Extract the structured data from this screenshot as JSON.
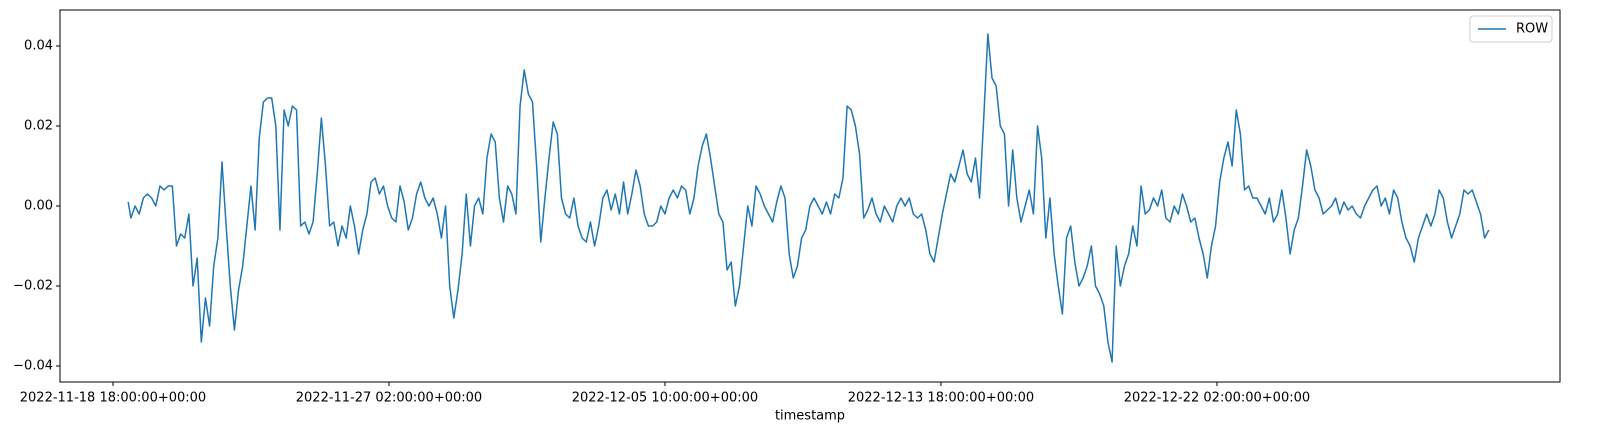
{
  "chart_data": {
    "type": "line",
    "xlabel": "timestamp",
    "x": [
      11,
      13,
      16,
      19,
      22,
      25,
      28,
      31,
      34,
      37,
      40,
      43,
      46,
      49,
      52,
      55,
      58,
      61,
      64,
      67,
      70,
      73,
      76,
      79,
      82,
      85,
      88,
      91,
      94,
      97,
      100,
      103,
      106,
      109,
      112,
      115,
      118,
      121,
      124,
      127,
      130,
      133,
      136,
      139,
      142,
      145,
      148,
      151,
      154,
      157,
      160,
      163,
      166,
      169,
      172,
      175,
      178,
      181,
      184,
      187,
      190,
      193,
      196,
      199,
      202,
      205,
      208,
      211,
      214,
      217,
      220,
      223,
      226,
      229,
      232,
      235,
      238,
      241,
      244,
      247,
      250,
      253,
      256,
      259,
      262,
      265,
      268,
      271,
      274,
      277,
      280,
      283,
      286,
      289,
      292,
      295,
      298,
      301,
      304,
      307,
      310,
      313,
      316,
      319,
      322,
      325,
      328,
      331,
      334,
      337,
      340,
      343,
      346,
      349,
      352,
      355,
      358,
      361,
      364,
      367,
      370,
      373,
      376,
      379,
      382,
      385,
      388,
      391,
      394,
      397,
      400,
      403,
      406,
      409,
      412,
      415,
      418,
      421,
      424,
      427,
      430,
      433,
      436,
      439,
      442,
      445,
      448,
      451,
      454,
      457,
      460,
      463,
      466,
      469,
      472,
      475,
      478,
      481,
      484,
      487,
      490,
      493,
      496,
      499,
      502,
      505,
      508,
      511,
      514,
      517,
      520,
      523,
      526,
      529,
      532,
      535,
      538,
      541,
      544,
      547,
      550,
      553,
      556,
      559,
      562,
      565,
      568,
      571,
      574,
      577,
      580,
      583,
      586,
      589,
      592,
      595,
      598,
      601,
      604,
      607,
      610,
      613,
      616,
      619,
      622,
      625,
      628,
      631,
      634,
      637,
      640,
      643,
      646,
      649,
      652,
      655,
      658,
      661,
      664,
      667,
      670,
      673,
      676,
      679,
      682,
      685,
      688,
      691,
      694,
      697,
      700,
      703,
      706,
      709,
      712,
      715,
      718,
      721,
      724,
      727,
      730,
      733,
      736,
      739,
      742,
      745,
      748,
      751,
      754,
      757,
      760,
      763,
      766,
      769,
      772,
      775,
      778,
      781,
      784,
      787,
      790,
      793,
      796,
      799,
      802,
      805,
      808,
      811,
      814,
      817,
      820,
      823,
      826,
      829,
      832,
      835,
      838,
      841,
      844,
      847,
      850,
      853,
      856,
      859,
      862,
      865,
      868,
      871,
      874,
      877,
      880,
      883,
      886,
      889,
      892,
      895,
      898,
      901,
      904,
      907,
      910,
      913,
      916,
      919,
      922,
      925,
      928,
      931,
      934,
      937,
      940,
      943,
      946,
      949,
      952,
      955,
      958,
      961,
      964,
      967,
      970,
      973,
      976,
      979,
      982,
      985,
      988,
      991,
      994,
      997
    ],
    "series": [
      {
        "name": "ROW",
        "color": "#1f77b4",
        "values": [
          0.001,
          -0.003,
          0,
          -0.002,
          0.002,
          0.003,
          0.002,
          0,
          0.005,
          0.004,
          0.005,
          0.005,
          -0.01,
          -0.007,
          -0.008,
          -0.002,
          -0.02,
          -0.013,
          -0.034,
          -0.023,
          -0.03,
          -0.015,
          -0.008,
          0.011,
          -0.005,
          -0.02,
          -0.031,
          -0.021,
          -0.015,
          -0.005,
          0.005,
          -0.006,
          0.017,
          0.026,
          0.027,
          0.027,
          0.02,
          -0.006,
          0.024,
          0.02,
          0.025,
          0.024,
          -0.005,
          -0.004,
          -0.007,
          -0.004,
          0.008,
          0.022,
          0.01,
          -0.005,
          -0.004,
          -0.01,
          -0.005,
          -0.008,
          0,
          -0.005,
          -0.012,
          -0.006,
          -0.002,
          0.006,
          0.007,
          0.003,
          0.005,
          0,
          -0.003,
          -0.004,
          0.005,
          0.001,
          -0.006,
          -0.003,
          0.003,
          0.006,
          0.002,
          0,
          0.002,
          -0.002,
          -0.008,
          0,
          -0.02,
          -0.028,
          -0.021,
          -0.012,
          0.003,
          -0.01,
          0,
          0.002,
          -0.002,
          0.012,
          0.018,
          0.016,
          0.002,
          -0.004,
          0.005,
          0.003,
          -0.002,
          0.025,
          0.034,
          0.028,
          0.026,
          0.01,
          -0.009,
          0.002,
          0.012,
          0.021,
          0.018,
          0.002,
          -0.002,
          -0.003,
          0.002,
          -0.005,
          -0.008,
          -0.009,
          -0.004,
          -0.01,
          -0.005,
          0.002,
          0.004,
          -0.001,
          0.003,
          -0.002,
          0.006,
          -0.002,
          0.003,
          0.009,
          0.005,
          -0.002,
          -0.005,
          -0.005,
          -0.004,
          0,
          -0.002,
          0.002,
          0.004,
          0.002,
          0.005,
          0.004,
          -0.002,
          0.002,
          0.01,
          0.015,
          0.018,
          0.012,
          0.005,
          -0.002,
          -0.004,
          -0.016,
          -0.014,
          -0.025,
          -0.02,
          -0.01,
          0,
          -0.005,
          0.005,
          0.003,
          0,
          -0.002,
          -0.004,
          0.001,
          0.005,
          0.002,
          -0.012,
          -0.018,
          -0.015,
          -0.008,
          -0.006,
          0,
          0.002,
          0,
          -0.002,
          0.001,
          -0.002,
          0.003,
          0.002,
          0.007,
          0.025,
          0.024,
          0.02,
          0.013,
          -0.003,
          -0.001,
          0.002,
          -0.002,
          -0.004,
          0,
          -0.002,
          -0.004,
          0,
          0.002,
          0,
          0.002,
          -0.002,
          -0.003,
          -0.002,
          -0.006,
          -0.012,
          -0.014,
          -0.008,
          -0.002,
          0.003,
          0.008,
          0.006,
          0.01,
          0.014,
          0.008,
          0.006,
          0.012,
          0.002,
          0.022,
          0.043,
          0.032,
          0.03,
          0.02,
          0.018,
          0,
          0.014,
          0.002,
          -0.004,
          0,
          0.004,
          -0.002,
          0.02,
          0.012,
          -0.008,
          0.002,
          -0.012,
          -0.02,
          -0.027,
          -0.008,
          -0.005,
          -0.014,
          -0.02,
          -0.018,
          -0.015,
          -0.01,
          -0.02,
          -0.022,
          -0.025,
          -0.034,
          -0.039,
          -0.01,
          -0.02,
          -0.015,
          -0.012,
          -0.005,
          -0.01,
          0.005,
          -0.002,
          -0.001,
          0.002,
          0,
          0.004,
          -0.003,
          -0.004,
          0,
          -0.002,
          0.003,
          0,
          -0.004,
          -0.003,
          -0.008,
          -0.012,
          -0.018,
          -0.01,
          -0.005,
          0.006,
          0.012,
          0.016,
          0.01,
          0.024,
          0.018,
          0.004,
          0.005,
          0.002,
          0.002,
          0,
          -0.002,
          0.002,
          -0.004,
          -0.002,
          0.004,
          -0.003,
          -0.012,
          -0.006,
          -0.003,
          0.005,
          0.014,
          0.01,
          0.004,
          0.002,
          -0.002,
          -0.001,
          0,
          0.002,
          -0.002,
          0.001,
          -0.001,
          0,
          -0.002,
          -0.003,
          0,
          0.002,
          0.004,
          0.005,
          0,
          0.002,
          -0.002,
          0.004,
          0.002,
          -0.004,
          -0.008,
          -0.01,
          -0.014,
          -0.008,
          -0.005,
          -0.002,
          -0.005,
          -0.002,
          0.004,
          0.002,
          -0.004,
          -0.008,
          -0.005,
          -0.002,
          0.004,
          0.003,
          0.004,
          0.001,
          -0.002,
          -0.008,
          -0.006
        ]
      }
    ],
    "xlim": [
      -38.4,
      1048.6
    ],
    "xticks": [
      {
        "value": 0,
        "label": "2022-11-18 18:00:00+00:00"
      },
      {
        "value": 200,
        "label": "2022-11-27 02:00:00+00:00"
      },
      {
        "value": 400,
        "label": "2022-12-05 10:00:00+00:00"
      },
      {
        "value": 600,
        "label": "2022-12-13 18:00:00+00:00"
      },
      {
        "value": 800,
        "label": "2022-12-22 02:00:00+00:00"
      }
    ],
    "ylim": [
      -0.044,
      0.049
    ],
    "yticks": [
      {
        "value": -0.04,
        "label": "−0.04"
      },
      {
        "value": -0.02,
        "label": "−0.02"
      },
      {
        "value": 0,
        "label": "0.00"
      },
      0.02,
      0.04
    ],
    "legend": "upper right"
  }
}
